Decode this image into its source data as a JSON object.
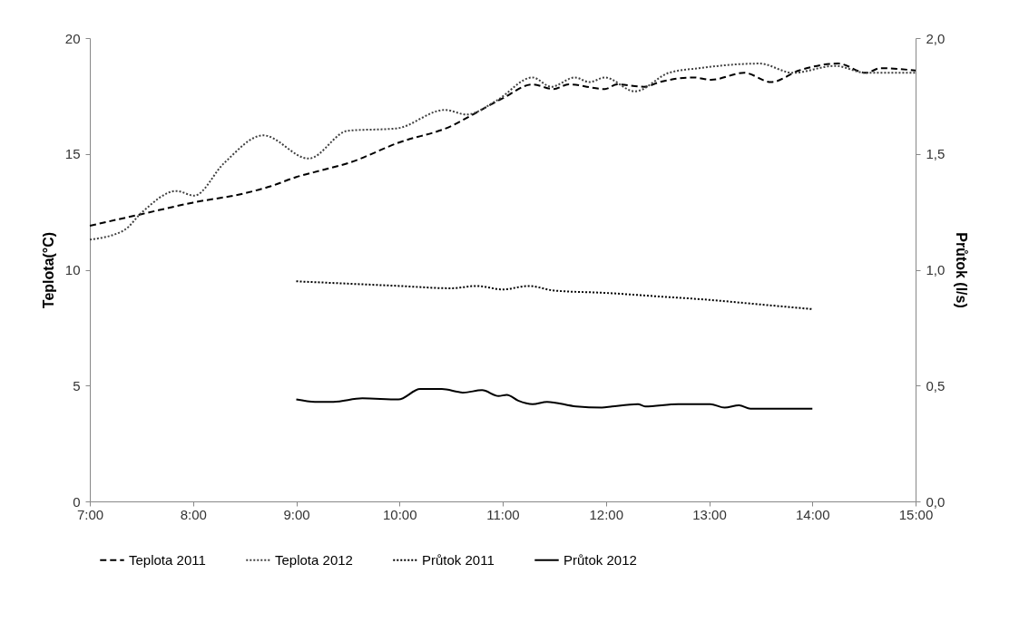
{
  "chart_data": {
    "type": "line",
    "ylabel": "Teplota(°C)",
    "y2label": "Průtok (l/s)",
    "xlim": [
      7,
      15
    ],
    "xticks": [
      {
        "value": 7,
        "label": "7:00"
      },
      {
        "value": 8,
        "label": "8:00"
      },
      {
        "value": 9,
        "label": "9:00"
      },
      {
        "value": 10,
        "label": "10:00"
      },
      {
        "value": 11,
        "label": "11:00"
      },
      {
        "value": 12,
        "label": "12:00"
      },
      {
        "value": 13,
        "label": "13:00"
      },
      {
        "value": 14,
        "label": "14:00"
      },
      {
        "value": 15,
        "label": "15:00"
      }
    ],
    "ylim": [
      0,
      20
    ],
    "yticks": [
      0,
      5,
      10,
      15,
      20
    ],
    "y2lim": [
      0,
      2
    ],
    "y2ticks": [
      {
        "value": 0,
        "label": "0,0"
      },
      {
        "value": 0.5,
        "label": "0,5"
      },
      {
        "value": 1,
        "label": "1,0"
      },
      {
        "value": 1.5,
        "label": "1,5"
      },
      {
        "value": 2,
        "label": "2,0"
      }
    ],
    "grid": false,
    "legend": "bottom",
    "marker": "none",
    "series": [
      {
        "name": "Teplota 2011",
        "color": "#000000",
        "line_style": "dashed",
        "x": [
          7,
          7.5,
          8,
          8.5,
          8.75,
          9,
          9.25,
          9.5,
          10,
          10.5,
          10.75,
          11,
          11.29,
          11.49,
          11.64,
          11.99,
          12.11,
          12.37,
          12.52,
          12.85,
          13.02,
          13.34,
          13.6,
          13.87,
          14.25,
          14.52,
          14.66,
          15
        ],
        "values": [
          11.9,
          12.4,
          12.9,
          13.3,
          13.6,
          14.0,
          14.3,
          14.6,
          15.5,
          16.2,
          16.8,
          17.4,
          18.0,
          17.8,
          18.0,
          17.8,
          18.0,
          17.9,
          18.1,
          18.3,
          18.2,
          18.5,
          18.1,
          18.6,
          18.9,
          18.5,
          18.7,
          18.6
        ]
      },
      {
        "name": "Teplota 2012",
        "color": "#404040",
        "line_style": "dotted",
        "x": [
          7,
          7.33,
          7.51,
          7.84,
          8.01,
          8.3,
          8.68,
          9.12,
          9.5,
          9.97,
          10.44,
          10.65,
          10.94,
          11.29,
          11.47,
          11.7,
          11.84,
          11.99,
          12.28,
          12.61,
          12.9,
          13.49,
          13.81,
          14.22,
          14.52,
          15
        ],
        "values": [
          11.3,
          11.7,
          12.5,
          13.4,
          13.2,
          14.6,
          15.8,
          14.8,
          16.0,
          16.1,
          16.9,
          16.7,
          17.3,
          18.3,
          17.9,
          18.3,
          18.1,
          18.3,
          17.7,
          18.5,
          18.7,
          18.9,
          18.5,
          18.8,
          18.5,
          18.5
        ]
      },
      {
        "name": "Průtok 2011",
        "color": "#000000",
        "line_style": "dotted",
        "axis": "y2",
        "x": [
          9,
          9.5,
          10,
          10.5,
          10.75,
          11,
          11.25,
          11.5,
          12,
          12.5,
          13,
          13.5,
          14
        ],
        "values": [
          0.95,
          0.94,
          0.93,
          0.92,
          0.93,
          0.915,
          0.93,
          0.91,
          0.9,
          0.885,
          0.87,
          0.85,
          0.83
        ]
      },
      {
        "name": "Průtok 2012",
        "color": "#000000",
        "line_style": "solid",
        "axis": "y2",
        "x": [
          9,
          9.18,
          9.36,
          9.64,
          9.99,
          10.2,
          10.41,
          10.62,
          10.8,
          10.96,
          11.04,
          11.15,
          11.29,
          11.43,
          11.71,
          11.96,
          12.06,
          12.31,
          12.38,
          12.7,
          13.01,
          13.15,
          13.29,
          13.4,
          14
        ],
        "values": [
          0.44,
          0.43,
          0.43,
          0.445,
          0.44,
          0.485,
          0.485,
          0.47,
          0.48,
          0.455,
          0.46,
          0.435,
          0.42,
          0.43,
          0.41,
          0.405,
          0.41,
          0.42,
          0.41,
          0.42,
          0.42,
          0.405,
          0.415,
          0.4,
          0.4
        ]
      }
    ]
  }
}
